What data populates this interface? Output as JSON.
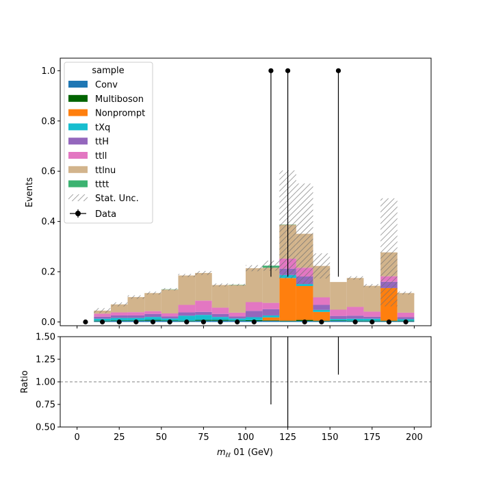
{
  "chart_data": {
    "type": "bar",
    "stacked": true,
    "xlabel_main": "m",
    "xlabel_sub": "ℓℓ",
    "xlabel_rest": " 01 (GeV)",
    "ylabel_top": "Events",
    "ylabel_bottom": "Ratio",
    "xlim": [
      -10,
      210
    ],
    "ylim_top": [
      -0.015,
      1.05
    ],
    "ylim_bottom": [
      0.5,
      1.5
    ],
    "x_ticks": [
      "0",
      "25",
      "50",
      "75",
      "100",
      "125",
      "150",
      "175",
      "200"
    ],
    "y_ticks_top": [
      "0.0",
      "0.2",
      "0.4",
      "0.6",
      "0.8",
      "1.0"
    ],
    "y_ticks_bottom": [
      "0.50",
      "0.75",
      "1.00",
      "1.25",
      "1.50"
    ],
    "bin_edges": [
      10,
      20,
      30,
      40,
      50,
      60,
      70,
      80,
      90,
      100,
      110,
      120,
      130,
      140,
      150,
      160,
      170,
      180,
      190,
      200
    ],
    "legend": {
      "title": "sample",
      "placement": "upper-left"
    },
    "series": [
      {
        "name": "Conv",
        "color": "#1f77b4",
        "values": [
          0.003,
          0.004,
          0.004,
          0.005,
          0.004,
          0.003,
          0.005,
          0.005,
          0.004,
          0.004,
          0.004,
          0.003,
          0.004,
          0.003,
          0.004,
          0.003,
          0.003,
          0.003,
          0.003
        ]
      },
      {
        "name": "Multiboson",
        "color": "#006400",
        "values": [
          0.002,
          0.002,
          0.002,
          0.003,
          0.002,
          0.002,
          0.003,
          0.003,
          0.002,
          0.003,
          0.002,
          0.002,
          0.004,
          0.002,
          0.002,
          0.002,
          0.002,
          0.002,
          0.002
        ]
      },
      {
        "name": "Nonprompt",
        "color": "#ff7f0e",
        "values": [
          0.0,
          0.0,
          0.0,
          0.0,
          0.0,
          0.0,
          0.0,
          0.0,
          0.0,
          0.0,
          0.012,
          0.17,
          0.135,
          0.035,
          0.0,
          0.0,
          0.0,
          0.13,
          0.0
        ]
      },
      {
        "name": "tXq",
        "color": "#17becf",
        "values": [
          0.008,
          0.01,
          0.01,
          0.012,
          0.008,
          0.02,
          0.02,
          0.012,
          0.008,
          0.012,
          0.008,
          0.012,
          0.008,
          0.008,
          0.006,
          0.008,
          0.008,
          0.0,
          0.006
        ]
      },
      {
        "name": "ttH",
        "color": "#9467bd",
        "values": [
          0.008,
          0.01,
          0.01,
          0.012,
          0.008,
          0.013,
          0.012,
          0.012,
          0.008,
          0.025,
          0.025,
          0.025,
          0.03,
          0.02,
          0.012,
          0.012,
          0.008,
          0.025,
          0.008
        ]
      },
      {
        "name": "ttll",
        "color": "#e377c2",
        "values": [
          0.012,
          0.012,
          0.013,
          0.011,
          0.012,
          0.03,
          0.045,
          0.025,
          0.015,
          0.035,
          0.025,
          0.04,
          0.035,
          0.03,
          0.025,
          0.035,
          0.02,
          0.022,
          0.018
        ]
      },
      {
        "name": "ttlnu",
        "color": "#d2b48c",
        "values": [
          0.012,
          0.032,
          0.06,
          0.072,
          0.095,
          0.117,
          0.11,
          0.09,
          0.11,
          0.135,
          0.14,
          0.135,
          0.135,
          0.125,
          0.11,
          0.115,
          0.103,
          0.095,
          0.078
        ]
      },
      {
        "name": "tttt",
        "color": "#3cb371",
        "values": [
          0.0,
          0.0,
          0.0,
          0.0,
          0.001,
          0.0,
          0.0,
          0.0,
          0.001,
          0.0,
          0.008,
          0.001,
          0.0,
          0.0,
          0.0,
          0.0,
          0.0,
          0.0,
          0.0
        ]
      }
    ],
    "stat_unc_label": "Stat. Unc.",
    "stat_unc": [
      0.01,
      0.008,
      0.007,
      0.006,
      0.005,
      0.006,
      0.008,
      0.006,
      0.004,
      0.012,
      0.02,
      0.215,
      0.2,
      0.05,
      0.0,
      0.007,
      0.007,
      0.215,
      0.006
    ],
    "data_label": "Data",
    "data_x": [
      5,
      15,
      25,
      35,
      45,
      55,
      65,
      75,
      85,
      95,
      105,
      115,
      125,
      135,
      145,
      155,
      165,
      175,
      185,
      195
    ],
    "data_y": [
      0,
      0,
      0,
      0,
      0,
      0,
      0,
      0,
      0,
      0,
      0,
      1,
      1,
      0,
      0,
      1,
      0,
      0,
      0,
      0
    ],
    "data_err_low": [
      0.18,
      0.18,
      0.18
    ],
    "ratio_x": [
      115,
      125,
      155
    ],
    "ratio_ylow": [
      0.75,
      0.5,
      1.08
    ],
    "ratio_yhigh": [
      1.5,
      1.5,
      1.5
    ],
    "ratio_reference": 1.0
  }
}
